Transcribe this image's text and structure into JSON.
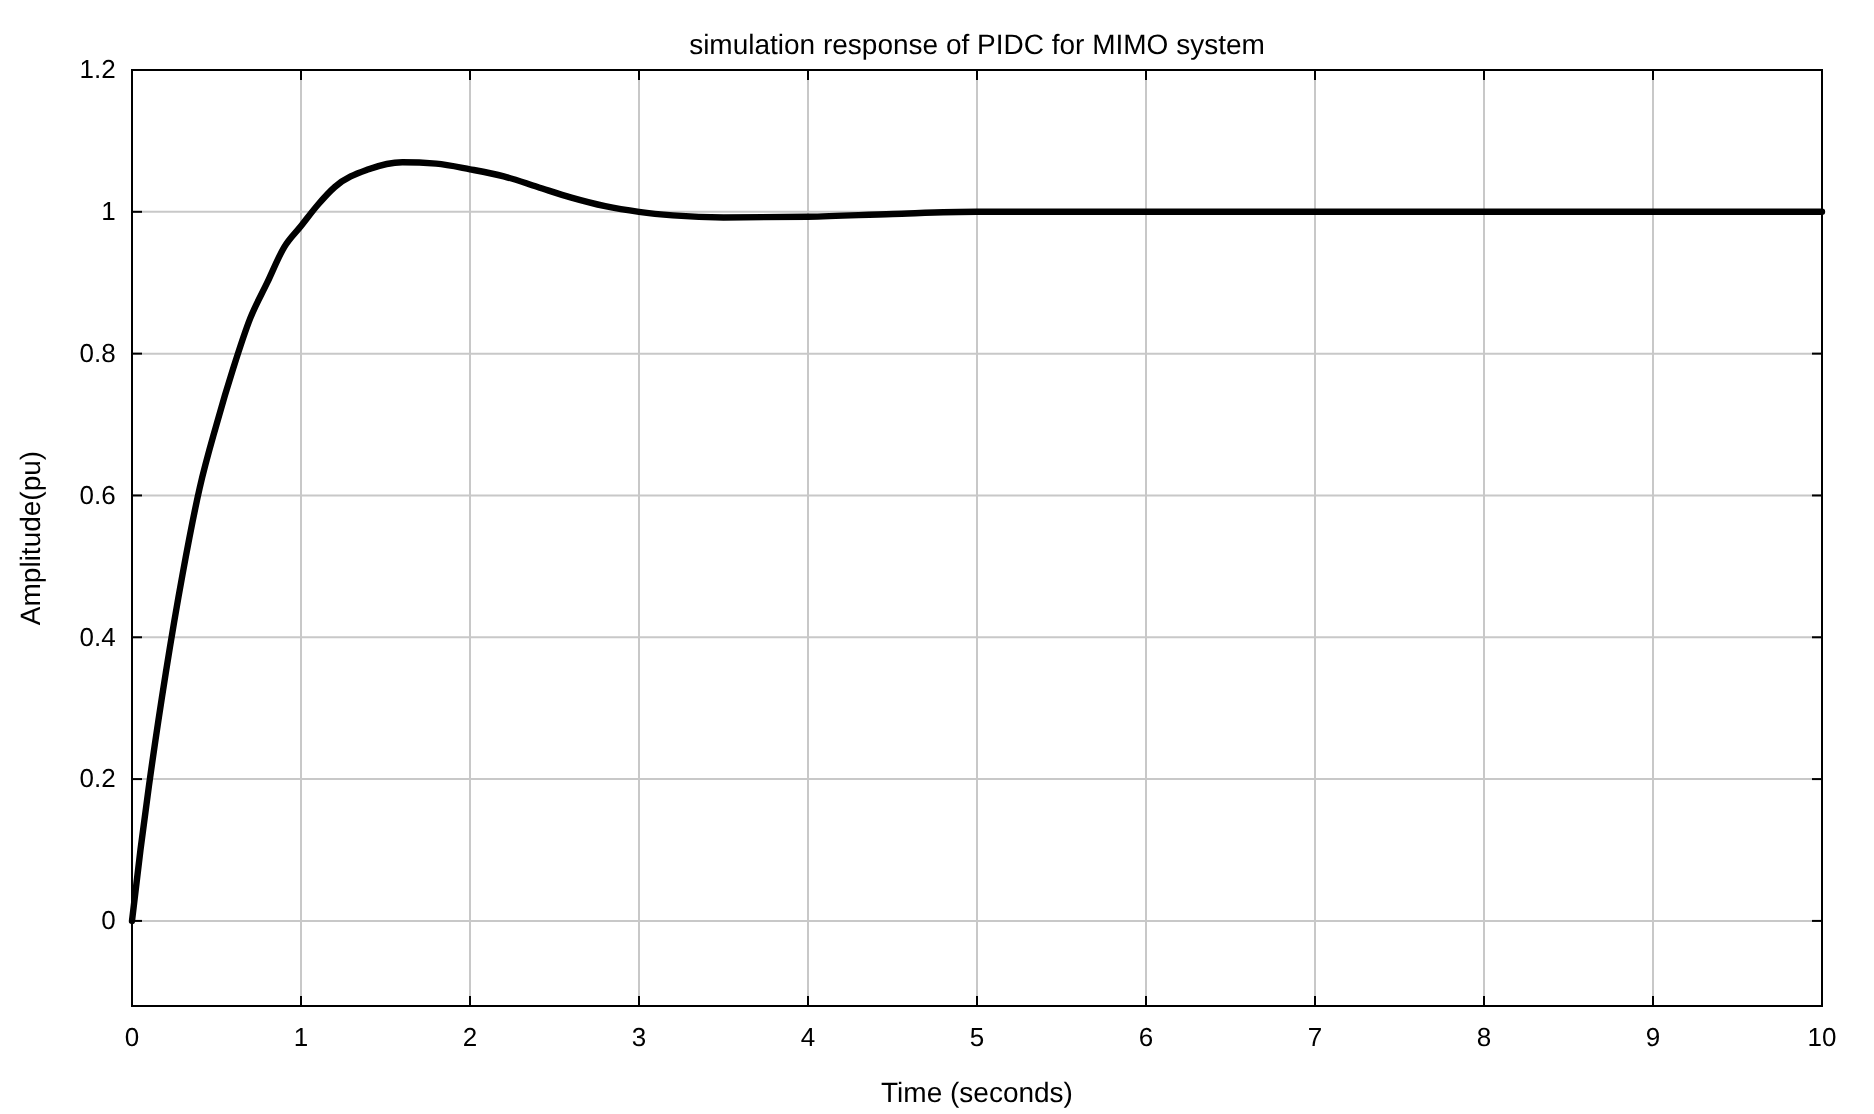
{
  "chart_data": {
    "type": "line",
    "title": "simulation response of PIDC for MIMO system",
    "xlabel": "Time (seconds)",
    "ylabel": "Amplitude(pu)",
    "xlim": [
      0,
      10
    ],
    "xticks": [
      0,
      1,
      2,
      3,
      4,
      5,
      6,
      7,
      8,
      9,
      10
    ],
    "ylim": [
      -0.12,
      1.2
    ],
    "yticks": [
      0,
      0.2,
      0.4,
      0.6,
      0.8,
      1,
      1.2
    ],
    "grid": true,
    "series": [
      {
        "color": "#000000",
        "x": [
          0,
          0.05,
          0.1,
          0.2,
          0.3,
          0.4,
          0.5,
          0.6,
          0.7,
          0.8,
          0.9,
          1.0,
          1.1,
          1.2,
          1.4,
          1.6,
          1.8,
          2.0,
          2.2,
          2.4,
          2.6,
          2.8,
          3.0,
          3.2,
          3.5,
          4.0,
          4.5,
          5,
          6,
          7,
          8,
          9,
          10
        ],
        "values": [
          0,
          0.1,
          0.19,
          0.35,
          0.49,
          0.61,
          0.7,
          0.78,
          0.85,
          0.9,
          0.95,
          0.98,
          1.01,
          1.035,
          1.06,
          1.07,
          1.068,
          1.06,
          1.05,
          1.035,
          1.02,
          1.008,
          1.0,
          0.995,
          0.992,
          0.993,
          0.997,
          1.0,
          1.0,
          1.0,
          1.0,
          1.0,
          1.0
        ]
      }
    ]
  }
}
